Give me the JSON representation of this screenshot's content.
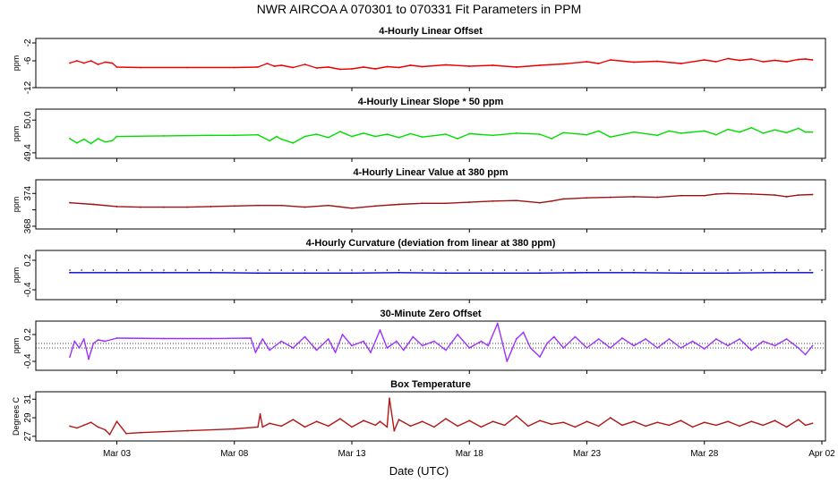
{
  "figure": {
    "title": "NWR   AIRCOA A   070301 to 070331   Fit Parameters in PPM",
    "xlabel": "Date (UTC)"
  },
  "colors": {
    "red": "#ee0000",
    "green": "#00dd00",
    "darkred": "#a01010",
    "blue": "#0000cc",
    "purple": "#9b30ff",
    "temp": "#b01818"
  },
  "chart_data": [
    {
      "type": "line",
      "title": "4-Hourly Linear Offset",
      "ylabel": "ppm",
      "ylim": [
        -12,
        -1
      ],
      "yticks": [
        -2,
        -6,
        -12
      ],
      "ytick_labels": [
        "-2",
        "-6",
        "-12"
      ],
      "xlim": [
        0,
        32
      ],
      "xticks": [
        2,
        7,
        12,
        17,
        22,
        27,
        32
      ],
      "xtick_labels": [
        "Mar 03",
        "Mar 08",
        "Mar 13",
        "Mar 18",
        "Mar 23",
        "Mar 28",
        "Apr 02"
      ],
      "color_key": "red",
      "series": [
        {
          "name": "offset",
          "x": [
            0.0,
            0.3,
            0.6,
            0.9,
            1.2,
            1.5,
            1.8,
            2.0,
            3.0,
            5.0,
            7.0,
            8.0,
            8.4,
            8.7,
            9.0,
            9.5,
            10.0,
            10.5,
            11.0,
            11.5,
            12.0,
            12.5,
            13.0,
            13.5,
            14.0,
            14.5,
            15.0,
            16.0,
            17.0,
            18.0,
            19.0,
            20.0,
            21.0,
            22.0,
            22.5,
            23.0,
            24.0,
            25.0,
            26.0,
            27.0,
            27.5,
            28.0,
            28.5,
            29.0,
            29.5,
            30.0,
            30.5,
            31.0,
            31.3,
            31.6
          ],
          "y": [
            -6.5,
            -6.0,
            -6.5,
            -6.0,
            -6.8,
            -6.3,
            -6.5,
            -7.4,
            -7.5,
            -7.5,
            -7.5,
            -7.4,
            -6.6,
            -7.2,
            -7.0,
            -7.5,
            -6.8,
            -7.6,
            -7.4,
            -7.9,
            -7.8,
            -7.4,
            -7.8,
            -7.3,
            -7.5,
            -7.0,
            -7.3,
            -6.9,
            -7.2,
            -7.0,
            -7.4,
            -7.0,
            -6.7,
            -6.2,
            -6.6,
            -5.8,
            -6.3,
            -6.1,
            -6.6,
            -5.8,
            -6.2,
            -5.5,
            -5.9,
            -5.6,
            -6.2,
            -5.9,
            -6.2,
            -5.7,
            -5.6,
            -5.8
          ]
        }
      ]
    },
    {
      "type": "line",
      "title": "4-Hourly Linear Slope * 50 ppm",
      "ylabel": "ppm",
      "ylim": [
        49.3,
        50.2
      ],
      "yticks": [
        50.0,
        49.4
      ],
      "ytick_labels": [
        "50.0",
        "49.4"
      ],
      "xlim": [
        0,
        32
      ],
      "color_key": "green",
      "series": [
        {
          "name": "slope",
          "x": [
            0.0,
            0.3,
            0.6,
            0.9,
            1.2,
            1.5,
            1.8,
            2.0,
            4.0,
            6.0,
            7.0,
            8.0,
            8.5,
            8.8,
            9.0,
            9.5,
            10.0,
            10.5,
            11.0,
            11.5,
            12.0,
            12.5,
            13.0,
            13.5,
            14.0,
            14.5,
            15.0,
            16.0,
            16.5,
            17.0,
            18.0,
            19.0,
            20.0,
            20.5,
            21.0,
            22.0,
            22.5,
            23.0,
            24.0,
            25.0,
            25.5,
            26.0,
            27.0,
            27.5,
            28.0,
            28.5,
            29.0,
            29.5,
            30.0,
            30.5,
            31.0,
            31.3,
            31.6
          ],
          "y": [
            49.66,
            49.58,
            49.65,
            49.57,
            49.66,
            49.6,
            49.62,
            49.7,
            49.71,
            49.72,
            49.72,
            49.73,
            49.62,
            49.7,
            49.65,
            49.58,
            49.7,
            49.74,
            49.68,
            49.79,
            49.7,
            49.76,
            49.7,
            49.74,
            49.68,
            49.75,
            49.69,
            49.74,
            49.66,
            49.75,
            49.72,
            49.76,
            49.74,
            49.66,
            49.77,
            49.73,
            49.8,
            49.69,
            49.78,
            49.72,
            49.8,
            49.76,
            49.8,
            49.73,
            49.83,
            49.78,
            49.86,
            49.76,
            49.82,
            49.77,
            49.85,
            49.78,
            49.78
          ]
        }
      ]
    },
    {
      "type": "line",
      "title": "4-Hourly Linear Value at 380 ppm",
      "ylabel": "ppm",
      "ylim": [
        367.5,
        376.5
      ],
      "yticks": [
        374,
        371,
        368
      ],
      "ytick_labels": [
        "374",
        "",
        "368"
      ],
      "xlim": [
        0,
        32
      ],
      "color_key": "darkred",
      "series": [
        {
          "name": "value380",
          "x": [
            0.0,
            1.0,
            2.0,
            3.0,
            4.0,
            5.0,
            6.0,
            7.0,
            8.0,
            9.0,
            10.0,
            11.0,
            12.0,
            13.0,
            14.0,
            15.0,
            16.0,
            17.0,
            18.0,
            19.0,
            20.0,
            20.5,
            21.0,
            22.0,
            23.0,
            24.0,
            25.0,
            26.0,
            27.0,
            27.5,
            28.0,
            29.0,
            30.0,
            30.5,
            31.0,
            31.6
          ],
          "y": [
            372.3,
            372.0,
            371.6,
            371.5,
            371.5,
            371.5,
            371.6,
            371.7,
            371.8,
            371.8,
            371.5,
            371.8,
            371.3,
            371.7,
            372.0,
            372.2,
            372.2,
            372.4,
            372.6,
            372.7,
            372.3,
            372.6,
            373.0,
            373.2,
            373.3,
            373.4,
            373.3,
            373.6,
            373.6,
            373.9,
            374.0,
            373.9,
            373.7,
            373.4,
            373.7,
            373.8
          ]
        }
      ]
    },
    {
      "type": "line",
      "title": "4-Hourly Curvature (deviation from linear at 380 ppm)",
      "ylabel": "ppm",
      "ylim": [
        -0.6,
        0.4
      ],
      "yticks": [
        0.2,
        -0.4
      ],
      "ytick_labels": [
        "0.2",
        "-0.4"
      ],
      "xlim": [
        0,
        32
      ],
      "color_key": "blue",
      "reference_dots": 0.0,
      "series": [
        {
          "name": "curvature",
          "x": [
            0.0,
            2.0,
            4.0,
            6.0,
            8.0,
            10.0,
            12.0,
            14.0,
            16.0,
            18.0,
            20.0,
            22.0,
            24.0,
            26.0,
            28.0,
            30.0,
            31.6
          ],
          "y": [
            -0.05,
            -0.05,
            -0.05,
            -0.05,
            -0.06,
            -0.06,
            -0.06,
            -0.05,
            -0.06,
            -0.06,
            -0.06,
            -0.05,
            -0.05,
            -0.06,
            -0.06,
            -0.05,
            -0.05
          ]
        }
      ]
    },
    {
      "type": "line",
      "title": "30-Minute Zero Offset",
      "ylabel": "ppm",
      "ylim": [
        -0.6,
        0.5
      ],
      "yticks": [
        0.2,
        -0.4
      ],
      "ytick_labels": [
        "0.2",
        "-0.4"
      ],
      "xlim": [
        0,
        32
      ],
      "color_key": "purple",
      "reference_lines": [
        0.0,
        -0.1
      ],
      "series": [
        {
          "name": "zero_offset",
          "x": [
            0.0,
            0.2,
            0.4,
            0.6,
            0.8,
            1.0,
            1.2,
            1.5,
            2.0,
            4.0,
            6.0,
            7.7,
            7.9,
            8.2,
            8.5,
            9.0,
            9.5,
            10.0,
            10.5,
            11.0,
            11.3,
            11.6,
            12.0,
            12.5,
            12.8,
            13.2,
            13.5,
            13.9,
            14.2,
            14.6,
            15.0,
            15.5,
            16.0,
            16.5,
            17.0,
            17.5,
            17.8,
            18.2,
            18.6,
            19.0,
            19.3,
            19.6,
            20.0,
            20.3,
            20.6,
            21.0,
            21.5,
            22.0,
            22.5,
            23.0,
            23.5,
            24.0,
            24.5,
            25.0,
            25.5,
            26.0,
            26.5,
            27.0,
            27.5,
            28.0,
            28.5,
            29.0,
            29.5,
            30.0,
            30.5,
            31.0,
            31.3,
            31.6
          ],
          "y": [
            -0.3,
            0.05,
            -0.1,
            0.1,
            -0.35,
            0.0,
            0.08,
            0.05,
            0.12,
            0.11,
            0.11,
            0.12,
            -0.2,
            0.1,
            -0.15,
            0.05,
            -0.1,
            0.15,
            -0.15,
            0.1,
            -0.2,
            0.2,
            -0.05,
            0.05,
            -0.2,
            0.3,
            -0.1,
            0.05,
            -0.15,
            0.15,
            -0.05,
            0.05,
            -0.15,
            0.2,
            -0.1,
            0.05,
            -0.05,
            0.45,
            -0.4,
            0.1,
            0.25,
            -0.1,
            -0.3,
            0.0,
            0.15,
            -0.1,
            0.15,
            -0.1,
            0.1,
            -0.1,
            0.12,
            -0.05,
            0.1,
            -0.1,
            0.1,
            -0.1,
            0.05,
            -0.12,
            0.1,
            -0.05,
            0.1,
            -0.15,
            0.05,
            -0.05,
            0.1,
            -0.1,
            -0.25,
            -0.05
          ]
        }
      ]
    },
    {
      "type": "line",
      "title": "Box Temperature",
      "ylabel": "Degrees C",
      "ylim": [
        26.5,
        31.8
      ],
      "yticks": [
        31,
        29,
        27
      ],
      "ytick_labels": [
        "31",
        "29",
        "27"
      ],
      "xlim": [
        0,
        32
      ],
      "color_key": "temp",
      "series": [
        {
          "name": "box_temp",
          "x": [
            0.0,
            0.3,
            0.6,
            0.9,
            1.2,
            1.5,
            1.7,
            2.0,
            2.4,
            3.0,
            5.0,
            7.0,
            8.0,
            8.1,
            8.2,
            8.5,
            9.0,
            9.5,
            10.0,
            10.5,
            11.0,
            11.5,
            12.0,
            12.5,
            13.0,
            13.2,
            13.5,
            13.6,
            13.8,
            14.0,
            14.5,
            15.0,
            15.5,
            16.0,
            16.5,
            17.0,
            17.5,
            18.0,
            18.5,
            19.0,
            19.5,
            20.0,
            20.5,
            21.0,
            21.5,
            22.0,
            22.5,
            23.0,
            23.5,
            24.0,
            24.5,
            25.0,
            25.5,
            26.0,
            26.5,
            27.0,
            27.5,
            28.0,
            28.5,
            29.0,
            29.5,
            30.0,
            30.5,
            31.0,
            31.3,
            31.6
          ],
          "y": [
            28.1,
            27.9,
            28.2,
            28.5,
            28.0,
            27.7,
            27.2,
            28.6,
            27.3,
            27.4,
            27.6,
            27.8,
            28.0,
            29.4,
            28.0,
            28.4,
            28.1,
            28.8,
            28.0,
            28.6,
            28.1,
            28.9,
            28.0,
            28.7,
            28.2,
            28.6,
            28.0,
            31.1,
            27.6,
            28.8,
            28.1,
            28.6,
            28.0,
            28.9,
            28.1,
            28.7,
            28.0,
            28.6,
            28.2,
            29.2,
            28.1,
            28.7,
            28.3,
            28.5,
            28.0,
            28.6,
            28.1,
            29.0,
            28.2,
            28.6,
            28.1,
            28.5,
            28.2,
            28.7,
            28.0,
            28.5,
            28.2,
            28.6,
            28.1,
            28.6,
            28.2,
            28.7,
            28.0,
            28.8,
            28.2,
            28.4
          ]
        }
      ]
    }
  ]
}
